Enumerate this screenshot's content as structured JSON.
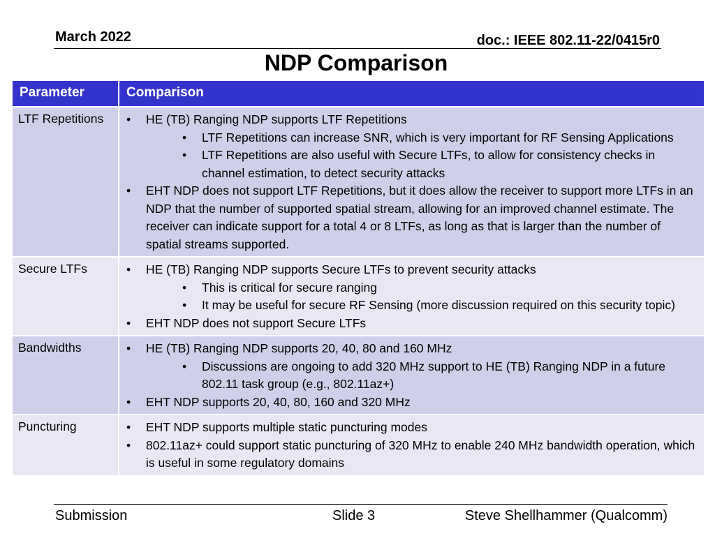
{
  "header": {
    "date": "March 2022",
    "doc_id": "doc.: IEEE 802.11-22/0415r0"
  },
  "title": "NDP Comparison",
  "table": {
    "headers": [
      "Parameter",
      "Comparison"
    ],
    "rows": [
      {
        "param": "LTF Repetitions",
        "bullets": [
          {
            "text": "HE (TB) Ranging NDP supports LTF Repetitions",
            "sub": [
              "LTF Repetitions can increase SNR, which is very important for RF Sensing Applications",
              "LTF Repetitions are also useful with Secure LTFs, to allow for consistency checks in channel estimation, to detect security attacks"
            ]
          },
          {
            "text": "EHT NDP does not support LTF Repetitions, but it does allow the receiver to support more LTFs in an NDP that the number of supported spatial stream, allowing for an improved channel estimate. The receiver can indicate support for a total 4 or 8 LTFs, as long as that is larger than the number of spatial streams supported.",
            "sub": []
          }
        ]
      },
      {
        "param": "Secure LTFs",
        "bullets": [
          {
            "text": "HE (TB) Ranging NDP supports Secure LTFs to prevent security attacks",
            "sub": [
              "This is critical for secure ranging",
              "It may be useful for secure RF Sensing (more discussion required on this security topic)"
            ]
          },
          {
            "text": "EHT NDP does not support Secure LTFs",
            "sub": []
          }
        ]
      },
      {
        "param": "Bandwidths",
        "bullets": [
          {
            "text": "HE (TB) Ranging NDP supports 20, 40, 80 and 160 MHz",
            "sub": [
              "Discussions are ongoing to add 320 MHz support to HE (TB) Ranging NDP in a future 802.11 task group (e.g., 802.11az+)"
            ]
          },
          {
            "text": "EHT NDP supports 20, 40, 80, 160 and 320 MHz",
            "sub": []
          }
        ]
      },
      {
        "param": "Puncturing",
        "bullets": [
          {
            "text": "EHT NDP supports multiple static puncturing modes",
            "sub": []
          },
          {
            "text": "802.11az+ could support static puncturing of 320 MHz to enable 240 MHz bandwidth operation, which is useful in some regulatory domains",
            "sub": []
          }
        ]
      }
    ]
  },
  "footer": {
    "left": "Submission",
    "center": "Slide 3",
    "right": "Steve Shellhammer (Qualcomm)"
  },
  "colors": {
    "header_bg": "#3434cc",
    "row_dark": "#cfcfe9",
    "row_light": "#e8e8f4"
  }
}
